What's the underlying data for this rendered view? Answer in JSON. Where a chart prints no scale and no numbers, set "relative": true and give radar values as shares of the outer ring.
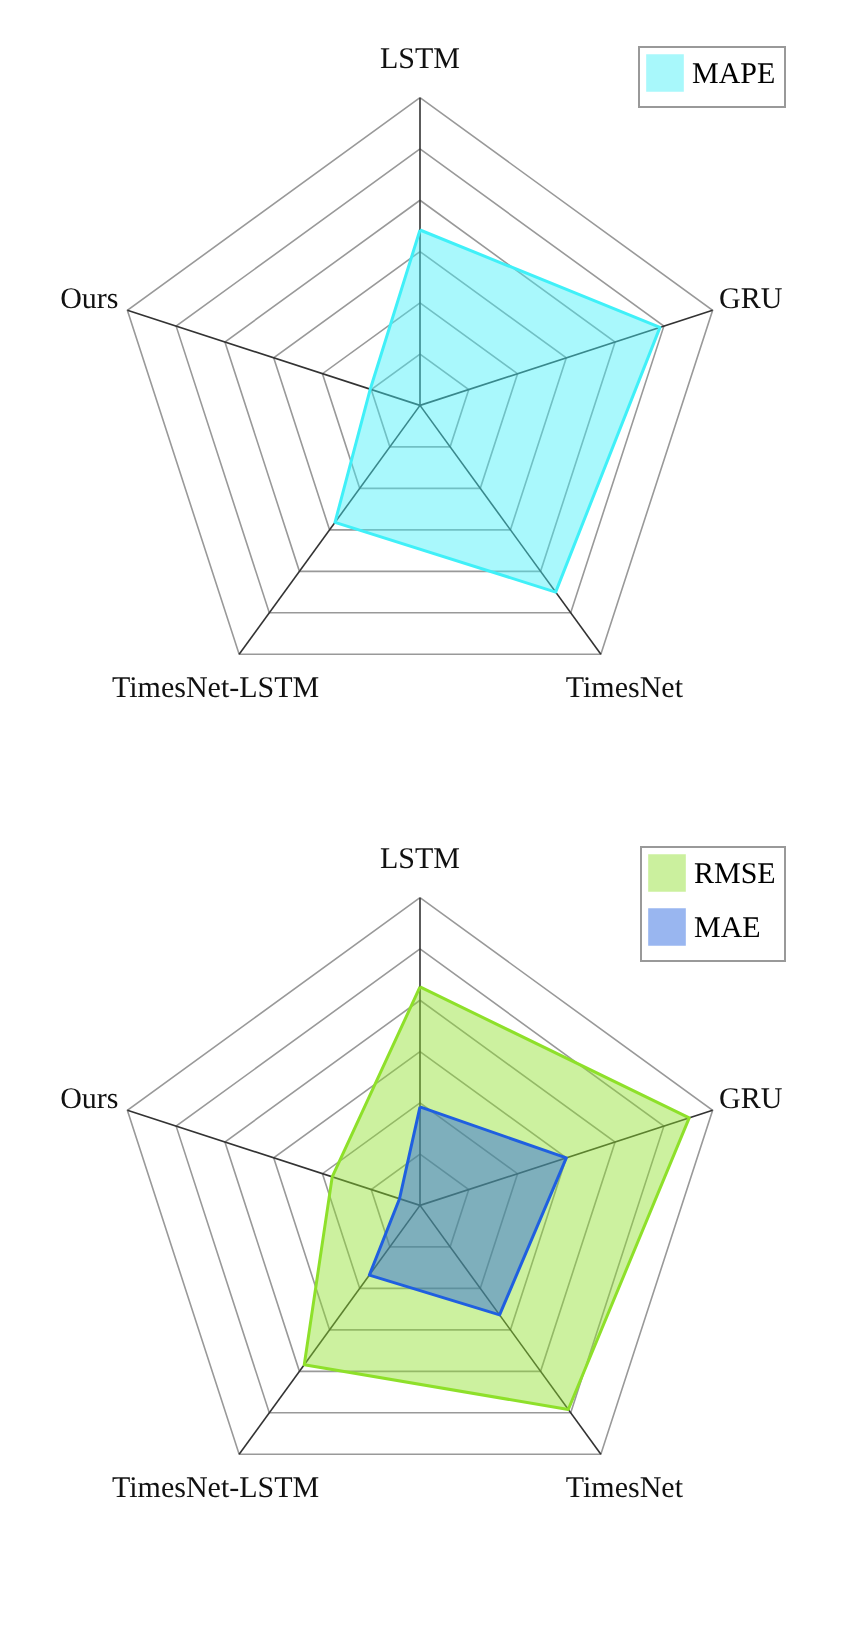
{
  "chart_data": [
    {
      "type": "radar",
      "relative": true,
      "categories": [
        "LSTM",
        "GRU",
        "TimesNet",
        "TimesNet-LSTM",
        "Ours"
      ],
      "legend": "top right",
      "series": [
        {
          "name": "MAPE",
          "color": "#40f0f8",
          "values": [
            0.57,
            0.82,
            0.75,
            0.47,
            0.17
          ]
        }
      ]
    },
    {
      "type": "radar",
      "relative": true,
      "categories": [
        "LSTM",
        "GRU",
        "TimesNet",
        "TimesNet-LSTM",
        "Ours"
      ],
      "legend": "top right",
      "series": [
        {
          "name": "RMSE",
          "color": "#8ee02a",
          "values": [
            0.71,
            0.92,
            0.82,
            0.64,
            0.3
          ]
        },
        {
          "name": "MAE",
          "color": "#1f5fe0",
          "values": [
            0.32,
            0.5,
            0.44,
            0.28,
            0.07
          ]
        }
      ]
    }
  ]
}
